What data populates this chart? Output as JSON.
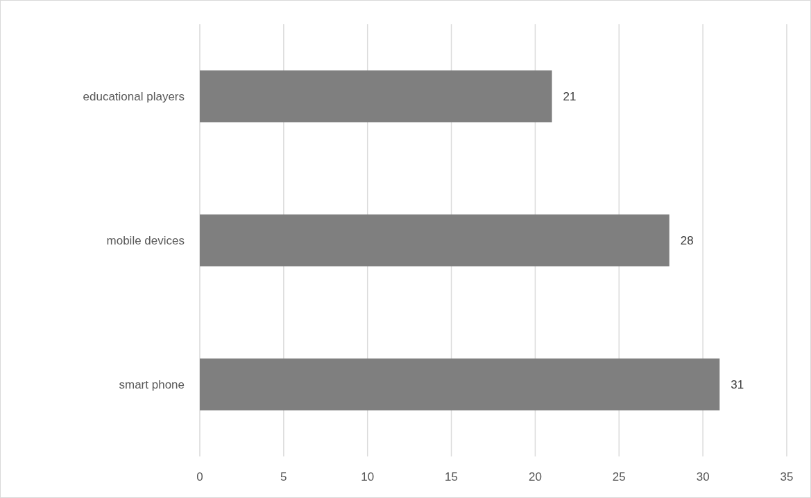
{
  "chart_data": {
    "type": "bar",
    "orientation": "horizontal",
    "categories": [
      "educational players",
      "mobile devices",
      "smart phone"
    ],
    "values": [
      21,
      28,
      31
    ],
    "color": "#7f7f7f",
    "xlim": [
      0,
      35
    ],
    "xticks": [
      0,
      5,
      10,
      15,
      20,
      25,
      30,
      35
    ],
    "grid": "x",
    "data_labels": true
  }
}
